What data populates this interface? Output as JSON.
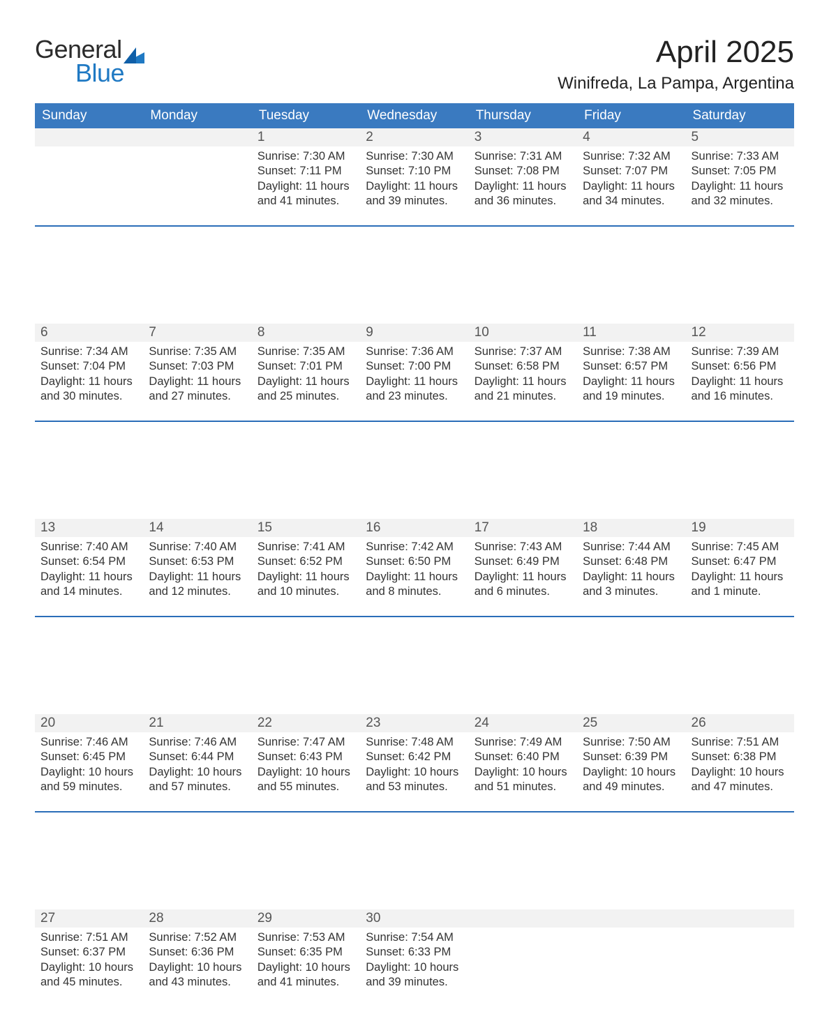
{
  "brand": {
    "word1": "General",
    "word2": "Blue"
  },
  "title": "April 2025",
  "location": "Winifreda, La Pampa, Argentina",
  "colors": {
    "header_blue": "#3a7ac0",
    "divider_blue": "#2a6db8",
    "daynum_bg": "#f2f2f2",
    "logo_blue": "#1f79c3",
    "logo_dark": "#2b2b2b"
  },
  "daysOfWeek": [
    "Sunday",
    "Monday",
    "Tuesday",
    "Wednesday",
    "Thursday",
    "Friday",
    "Saturday"
  ],
  "weeks": [
    [
      null,
      null,
      {
        "n": "1",
        "sunrise": "7:30 AM",
        "sunset": "7:11 PM",
        "daylight": "11 hours and 41 minutes."
      },
      {
        "n": "2",
        "sunrise": "7:30 AM",
        "sunset": "7:10 PM",
        "daylight": "11 hours and 39 minutes."
      },
      {
        "n": "3",
        "sunrise": "7:31 AM",
        "sunset": "7:08 PM",
        "daylight": "11 hours and 36 minutes."
      },
      {
        "n": "4",
        "sunrise": "7:32 AM",
        "sunset": "7:07 PM",
        "daylight": "11 hours and 34 minutes."
      },
      {
        "n": "5",
        "sunrise": "7:33 AM",
        "sunset": "7:05 PM",
        "daylight": "11 hours and 32 minutes."
      }
    ],
    [
      {
        "n": "6",
        "sunrise": "7:34 AM",
        "sunset": "7:04 PM",
        "daylight": "11 hours and 30 minutes."
      },
      {
        "n": "7",
        "sunrise": "7:35 AM",
        "sunset": "7:03 PM",
        "daylight": "11 hours and 27 minutes."
      },
      {
        "n": "8",
        "sunrise": "7:35 AM",
        "sunset": "7:01 PM",
        "daylight": "11 hours and 25 minutes."
      },
      {
        "n": "9",
        "sunrise": "7:36 AM",
        "sunset": "7:00 PM",
        "daylight": "11 hours and 23 minutes."
      },
      {
        "n": "10",
        "sunrise": "7:37 AM",
        "sunset": "6:58 PM",
        "daylight": "11 hours and 21 minutes."
      },
      {
        "n": "11",
        "sunrise": "7:38 AM",
        "sunset": "6:57 PM",
        "daylight": "11 hours and 19 minutes."
      },
      {
        "n": "12",
        "sunrise": "7:39 AM",
        "sunset": "6:56 PM",
        "daylight": "11 hours and 16 minutes."
      }
    ],
    [
      {
        "n": "13",
        "sunrise": "7:40 AM",
        "sunset": "6:54 PM",
        "daylight": "11 hours and 14 minutes."
      },
      {
        "n": "14",
        "sunrise": "7:40 AM",
        "sunset": "6:53 PM",
        "daylight": "11 hours and 12 minutes."
      },
      {
        "n": "15",
        "sunrise": "7:41 AM",
        "sunset": "6:52 PM",
        "daylight": "11 hours and 10 minutes."
      },
      {
        "n": "16",
        "sunrise": "7:42 AM",
        "sunset": "6:50 PM",
        "daylight": "11 hours and 8 minutes."
      },
      {
        "n": "17",
        "sunrise": "7:43 AM",
        "sunset": "6:49 PM",
        "daylight": "11 hours and 6 minutes."
      },
      {
        "n": "18",
        "sunrise": "7:44 AM",
        "sunset": "6:48 PM",
        "daylight": "11 hours and 3 minutes."
      },
      {
        "n": "19",
        "sunrise": "7:45 AM",
        "sunset": "6:47 PM",
        "daylight": "11 hours and 1 minute."
      }
    ],
    [
      {
        "n": "20",
        "sunrise": "7:46 AM",
        "sunset": "6:45 PM",
        "daylight": "10 hours and 59 minutes."
      },
      {
        "n": "21",
        "sunrise": "7:46 AM",
        "sunset": "6:44 PM",
        "daylight": "10 hours and 57 minutes."
      },
      {
        "n": "22",
        "sunrise": "7:47 AM",
        "sunset": "6:43 PM",
        "daylight": "10 hours and 55 minutes."
      },
      {
        "n": "23",
        "sunrise": "7:48 AM",
        "sunset": "6:42 PM",
        "daylight": "10 hours and 53 minutes."
      },
      {
        "n": "24",
        "sunrise": "7:49 AM",
        "sunset": "6:40 PM",
        "daylight": "10 hours and 51 minutes."
      },
      {
        "n": "25",
        "sunrise": "7:50 AM",
        "sunset": "6:39 PM",
        "daylight": "10 hours and 49 minutes."
      },
      {
        "n": "26",
        "sunrise": "7:51 AM",
        "sunset": "6:38 PM",
        "daylight": "10 hours and 47 minutes."
      }
    ],
    [
      {
        "n": "27",
        "sunrise": "7:51 AM",
        "sunset": "6:37 PM",
        "daylight": "10 hours and 45 minutes."
      },
      {
        "n": "28",
        "sunrise": "7:52 AM",
        "sunset": "6:36 PM",
        "daylight": "10 hours and 43 minutes."
      },
      {
        "n": "29",
        "sunrise": "7:53 AM",
        "sunset": "6:35 PM",
        "daylight": "10 hours and 41 minutes."
      },
      {
        "n": "30",
        "sunrise": "7:54 AM",
        "sunset": "6:33 PM",
        "daylight": "10 hours and 39 minutes."
      },
      null,
      null,
      null
    ]
  ],
  "labels": {
    "sunrise": "Sunrise: ",
    "sunset": "Sunset: ",
    "daylight": "Daylight: "
  }
}
